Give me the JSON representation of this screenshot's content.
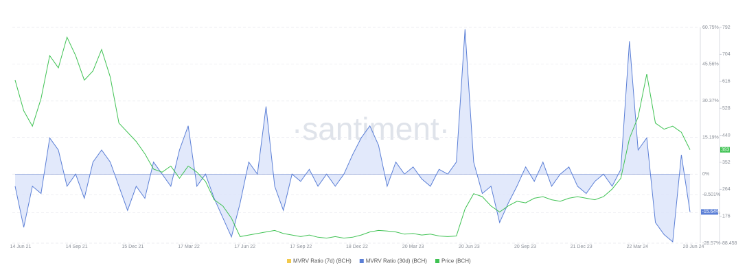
{
  "chart_data": {
    "type": "line",
    "watermark": "·santiment·",
    "x_labels": [
      "14 Jun 21",
      "14 Sep 21",
      "15 Dec 21",
      "17 Mar 22",
      "17 Jun 22",
      "17 Sep 22",
      "18 Dec 22",
      "20 Mar 23",
      "20 Jun 23",
      "20 Sep 23",
      "21 Dec 23",
      "22 Mar 24",
      "20 Jun 24"
    ],
    "ylim": [
      -28.57,
      60.75
    ],
    "yticks": [
      {
        "value": 60.75,
        "label": "60.75%"
      },
      {
        "value": 45.56,
        "label": "45.56%"
      },
      {
        "value": 30.37,
        "label": "30.37%"
      },
      {
        "value": 15.19,
        "label": "15.19%"
      },
      {
        "value": 0,
        "label": "0%"
      },
      {
        "value": -8.501,
        "label": "-8.501%"
      },
      {
        "value": -16.0,
        "label": "-16.00%"
      },
      {
        "value": -28.57,
        "label": "-28.57%"
      }
    ],
    "y2lim": [
      88.458,
      792
    ],
    "y2ticks": [
      792,
      704,
      616,
      528,
      440,
      352,
      264,
      176,
      88.458
    ],
    "grid": true,
    "series": [
      {
        "name": "MVRV Ratio (7d) (BCH)",
        "color": "#f2c94c",
        "values": []
      },
      {
        "name": "MVRV Ratio (30d) (BCH)",
        "color": "#5b7fd6",
        "fill": "#dbe4fa",
        "last_label": "-15.64%",
        "values": [
          -5,
          -22,
          -5,
          -8,
          15,
          10,
          -5,
          0,
          -10,
          5,
          10,
          5,
          -5,
          -15,
          -5,
          -10,
          5,
          0,
          -5,
          10,
          20,
          -5,
          0,
          -10,
          -18,
          -26,
          -12,
          5,
          0,
          28,
          -5,
          -15,
          0,
          -3,
          2,
          -5,
          0,
          -5,
          0,
          8,
          15,
          20,
          12,
          -5,
          5,
          0,
          3,
          -2,
          -5,
          2,
          0,
          5,
          60,
          5,
          -8,
          -5,
          -20,
          -12,
          -5,
          3,
          -3,
          5,
          -5,
          0,
          3,
          -5,
          -8,
          -3,
          0,
          -5,
          2,
          55,
          10,
          15,
          -20,
          -25,
          -28,
          8,
          -15.64
        ]
      },
      {
        "name": "Price (BCH)",
        "color": "#3ec252",
        "axis": "y2",
        "values": [
          620,
          520,
          470,
          560,
          700,
          660,
          760,
          700,
          620,
          650,
          720,
          630,
          480,
          450,
          420,
          380,
          330,
          320,
          340,
          300,
          340,
          320,
          290,
          230,
          210,
          170,
          110,
          115,
          120,
          125,
          130,
          120,
          115,
          110,
          115,
          108,
          105,
          110,
          105,
          108,
          115,
          125,
          130,
          128,
          125,
          118,
          120,
          115,
          118,
          112,
          110,
          112,
          200,
          250,
          240,
          210,
          190,
          210,
          225,
          220,
          235,
          240,
          230,
          225,
          235,
          240,
          235,
          230,
          240,
          265,
          300,
          430,
          500,
          640,
          480,
          460,
          470,
          450,
          393
        ]
      }
    ]
  }
}
